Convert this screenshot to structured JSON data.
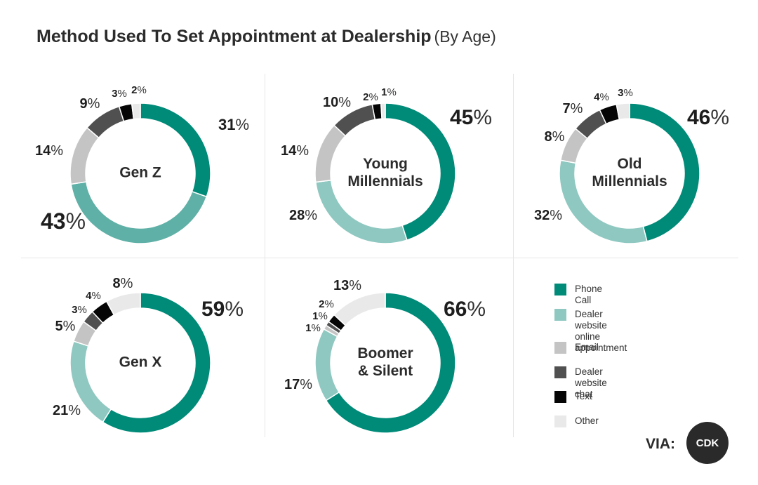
{
  "title": "Method Used To Set Appointment at Dealership",
  "subtitle": "(By Age)",
  "colors": {
    "Phone Call": "#008a78",
    "Dealer website online appointment": "#8fc8c0",
    "Email": "#c4c4c4",
    "Dealer website chat": "#505050",
    "Text": "#050505",
    "Other": "#e9e9e9"
  },
  "legend": [
    {
      "label": "Phone Call",
      "color": "#008a78"
    },
    {
      "label": "Dealer website online\nappointment",
      "color": "#8fc8c0"
    },
    {
      "label": "Email",
      "color": "#c4c4c4"
    },
    {
      "label": "Dealer website chat",
      "color": "#505050"
    },
    {
      "label": "Text",
      "color": "#050505"
    },
    {
      "label": "Other",
      "color": "#e9e9e9"
    }
  ],
  "chart_data": [
    {
      "type": "pie",
      "center_label": [
        "Gen Z"
      ],
      "categories": [
        "Phone Call",
        "Dealer website online appointment",
        "Email",
        "Dealer website chat",
        "Text",
        "Other"
      ],
      "values": [
        31,
        43,
        14,
        9,
        3,
        2
      ],
      "value_labels": [
        "31%",
        "43%",
        "14%",
        "9%",
        "3%",
        "2%"
      ],
      "highlight_color": "#5fb0a6"
    },
    {
      "type": "pie",
      "center_label": [
        "Young",
        "Millennials"
      ],
      "categories": [
        "Phone Call",
        "Dealer website online appointment",
        "Email",
        "Dealer website chat",
        "Text",
        "Other"
      ],
      "values": [
        45,
        28,
        14,
        10,
        2,
        1
      ],
      "value_labels": [
        "45%",
        "28%",
        "14%",
        "10%",
        "2%",
        "1%"
      ]
    },
    {
      "type": "pie",
      "center_label": [
        "Old",
        "Millennials"
      ],
      "categories": [
        "Phone Call",
        "Dealer website online appointment",
        "Email",
        "Dealer website chat",
        "Text",
        "Other"
      ],
      "values": [
        46,
        32,
        8,
        7,
        4,
        3
      ],
      "value_labels": [
        "46%",
        "32%",
        "8%",
        "7%",
        "4%",
        "3%"
      ]
    },
    {
      "type": "pie",
      "center_label": [
        "Gen X"
      ],
      "categories": [
        "Phone Call",
        "Dealer website online appointment",
        "Email",
        "Dealer website chat",
        "Text",
        "Other"
      ],
      "values": [
        59,
        21,
        5,
        3,
        4,
        8
      ],
      "value_labels": [
        "59%",
        "21%",
        "5%",
        "3%",
        "4%",
        "8%"
      ]
    },
    {
      "type": "pie",
      "center_label": [
        "Boomer",
        "& Silent"
      ],
      "categories": [
        "Phone Call",
        "Dealer website online appointment",
        "Email",
        "Dealer website chat",
        "Text",
        "Other"
      ],
      "values": [
        66,
        17,
        1,
        1,
        2,
        13
      ],
      "value_labels": [
        "66%",
        "17%",
        "1%",
        "1%",
        "2%",
        "13%"
      ]
    }
  ],
  "footer": {
    "via": "VIA:",
    "logo_text": "CDK"
  }
}
